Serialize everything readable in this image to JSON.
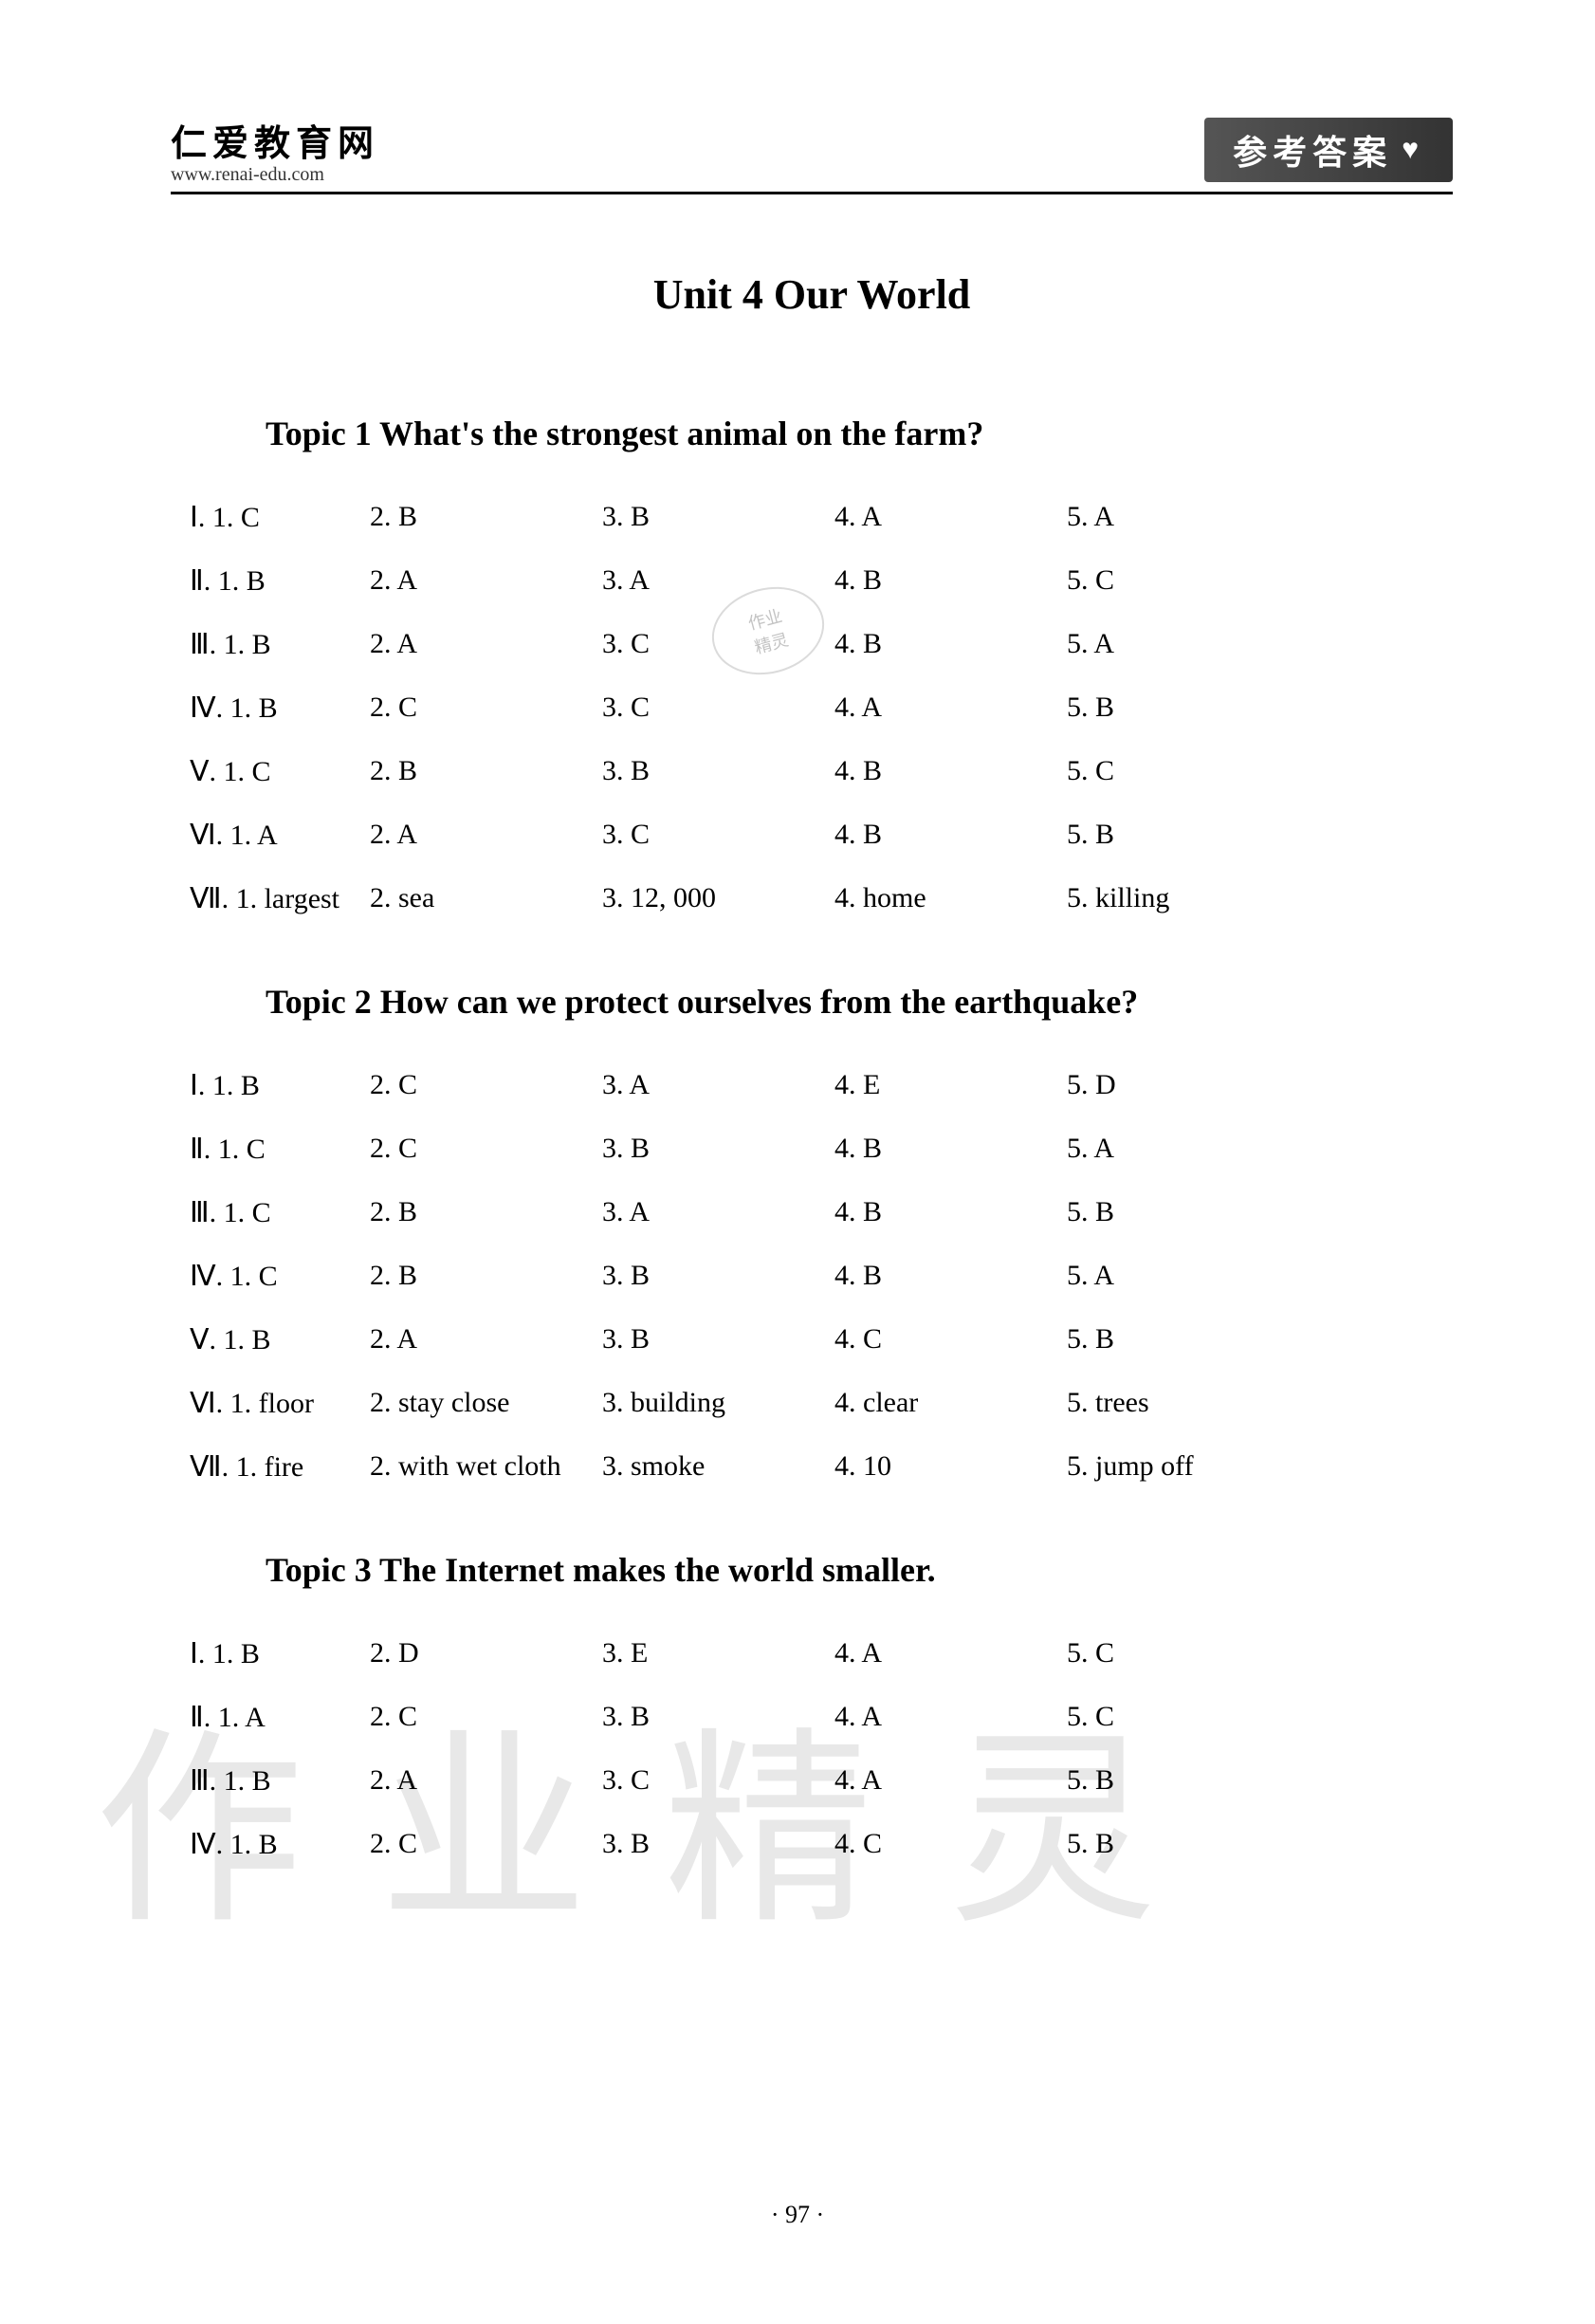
{
  "header": {
    "site_name_cn": "仁爱教育网",
    "site_url": "www.renai-edu.com",
    "banner_text": "参考答案"
  },
  "unit_title": "Unit 4    Our World",
  "page_number": "· 97 ·",
  "watermark_text": "作业精灵",
  "stamp": {
    "line1": "作业",
    "line2": "精灵"
  },
  "topics": [
    {
      "title": "Topic 1    What's the strongest animal on the farm?",
      "rows": [
        {
          "label": "Ⅰ. 1. C",
          "a2": "2. B",
          "a3": "3. B",
          "a4": "4. A",
          "a5": "5. A"
        },
        {
          "label": "Ⅱ. 1. B",
          "a2": "2. A",
          "a3": "3. A",
          "a4": "4. B",
          "a5": "5. C"
        },
        {
          "label": "Ⅲ. 1. B",
          "a2": "2. A",
          "a3": "3. C",
          "a4": "4. B",
          "a5": "5. A"
        },
        {
          "label": "Ⅳ. 1. B",
          "a2": "2. C",
          "a3": "3. C",
          "a4": "4. A",
          "a5": "5. B"
        },
        {
          "label": "Ⅴ. 1. C",
          "a2": "2. B",
          "a3": "3. B",
          "a4": "4. B",
          "a5": "5. C"
        },
        {
          "label": "Ⅵ. 1. A",
          "a2": "2. A",
          "a3": "3. C",
          "a4": "4. B",
          "a5": "5. B"
        },
        {
          "label": "Ⅶ. 1. largest",
          "a2": "2. sea",
          "a3": "3. 12, 000",
          "a4": "4. home",
          "a5": "5. killing"
        }
      ]
    },
    {
      "title": "Topic 2    How can we protect ourselves from the earthquake?",
      "rows": [
        {
          "label": "Ⅰ. 1. B",
          "a2": "2. C",
          "a3": "3. A",
          "a4": "4. E",
          "a5": "5. D"
        },
        {
          "label": "Ⅱ. 1. C",
          "a2": "2. C",
          "a3": "3. B",
          "a4": "4. B",
          "a5": "5. A"
        },
        {
          "label": "Ⅲ. 1. C",
          "a2": "2. B",
          "a3": "3. A",
          "a4": "4. B",
          "a5": "5. B"
        },
        {
          "label": "Ⅳ. 1. C",
          "a2": "2. B",
          "a3": "3. B",
          "a4": "4. B",
          "a5": "5. A"
        },
        {
          "label": "Ⅴ. 1. B",
          "a2": "2. A",
          "a3": "3. B",
          "a4": "4. C",
          "a5": "5. B"
        },
        {
          "label": "Ⅵ. 1. floor",
          "a2": "2. stay close",
          "a3": "3. building",
          "a4": "4. clear",
          "a5": "5. trees"
        },
        {
          "label": "Ⅶ. 1. fire",
          "a2": "2. with wet cloth",
          "a3": "3. smoke",
          "a4": "4. 10",
          "a5": "5. jump off"
        }
      ]
    },
    {
      "title": "Topic 3    The Internet makes the world smaller.",
      "rows": [
        {
          "label": "Ⅰ. 1. B",
          "a2": "2. D",
          "a3": "3. E",
          "a4": "4. A",
          "a5": "5. C"
        },
        {
          "label": "Ⅱ. 1. A",
          "a2": "2. C",
          "a3": "3. B",
          "a4": "4. A",
          "a5": "5. C"
        },
        {
          "label": "Ⅲ. 1. B",
          "a2": "2. A",
          "a3": "3. C",
          "a4": "4. A",
          "a5": "5. B"
        },
        {
          "label": "Ⅳ. 1. B",
          "a2": "2. C",
          "a3": "3. B",
          "a4": "4. C",
          "a5": "5. B"
        }
      ]
    }
  ]
}
